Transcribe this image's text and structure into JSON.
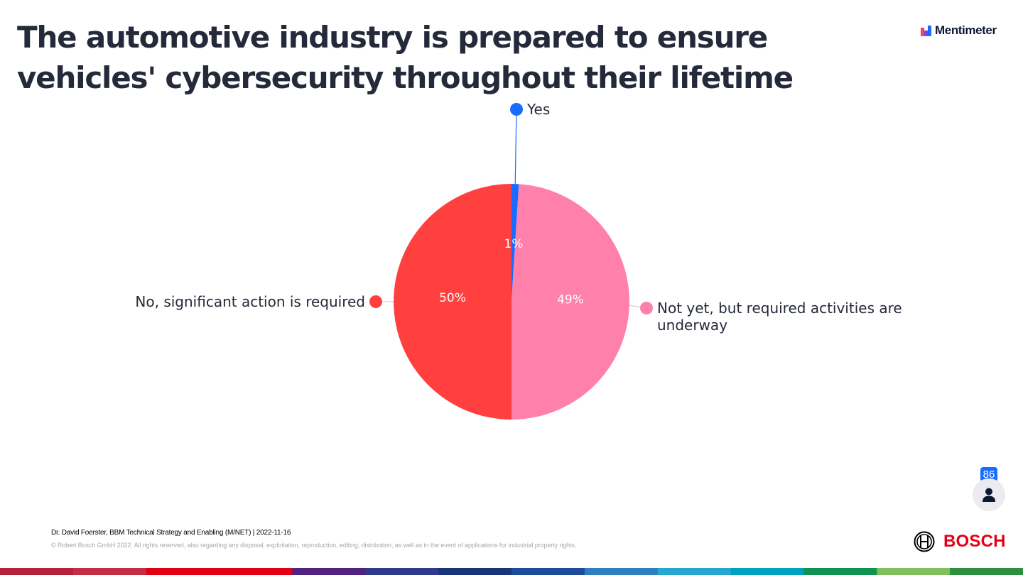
{
  "slide": {
    "title": "The automotive industry is prepared to ensure vehicles' cybersecurity throughout their lifetime"
  },
  "brand": {
    "name": "Mentimeter"
  },
  "responses": {
    "count": "86",
    "icon": "person-icon"
  },
  "footer": {
    "meta": "Dr. David Foerster, BBM Technical Strategy and Enabling (M/NET) | 2022-11-16",
    "copyright": "© Robert Bosch GmbH 2022. All rights reserved, also regarding any disposal, exploitation, reproduction, editing, distribution, as well as in the event of applications for industrial property rights.",
    "logo_text": "BOSCH"
  },
  "colors": {
    "title": "#252a3a",
    "accent_blue": "#196cff",
    "bosch_red": "#e20015",
    "band": [
      "#b3223a",
      "#c42e44",
      "#e20015",
      "#e20015",
      "#50237f",
      "#2e3a8c",
      "#18357a",
      "#1e4c9c",
      "#2d7fc1",
      "#27a6d1",
      "#00a0c0",
      "#109350",
      "#7fbf5c",
      "#2f8f3f"
    ]
  },
  "chart_data": {
    "type": "pie",
    "title": "",
    "categories": [
      "Yes",
      "Not yet, but required activities are underway",
      "No, significant action is required"
    ],
    "values": [
      1,
      49,
      50
    ],
    "labels": [
      "1%",
      "49%",
      "50%"
    ],
    "colors": [
      "#196cff",
      "#ff80ab",
      "#ff403f"
    ],
    "start": "top, clockwise",
    "legend": "callout labels beside slices"
  }
}
